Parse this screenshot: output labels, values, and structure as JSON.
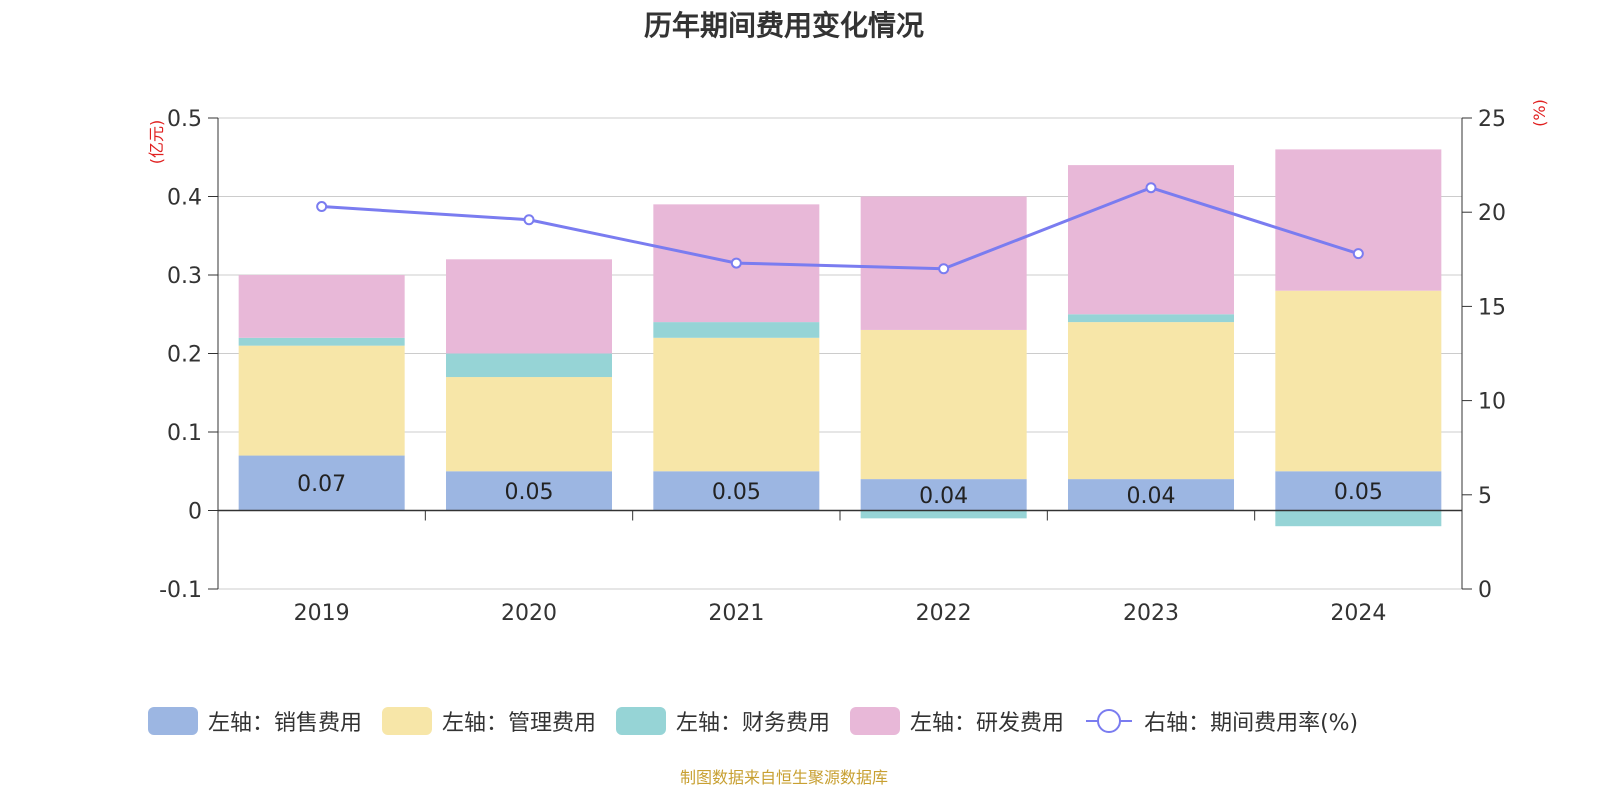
{
  "title": "历年期间费用变化情况",
  "source_note": "制图数据来自恒生聚源数据库",
  "colors": {
    "sales": "#9cb6e2",
    "admin": "#f7e6a8",
    "finance": "#96d4d6",
    "rd": "#e8b8d8",
    "rate_line": "#7a7cf0"
  },
  "legend": [
    {
      "label": "左轴：销售费用",
      "key": "sales",
      "kind": "bar"
    },
    {
      "label": "左轴：管理费用",
      "key": "admin",
      "kind": "bar"
    },
    {
      "label": "左轴：财务费用",
      "key": "finance",
      "kind": "bar"
    },
    {
      "label": "左轴：研发费用",
      "key": "rd",
      "kind": "bar"
    },
    {
      "label": "右轴：期间费用率(%)",
      "key": "rate_line",
      "kind": "line"
    }
  ],
  "chart_data": {
    "type": "bar",
    "stacked": true,
    "title": "历年期间费用变化情况",
    "categories": [
      "2019",
      "2020",
      "2021",
      "2022",
      "2023",
      "2024"
    ],
    "series": [
      {
        "name": "左轴：销售费用",
        "key": "sales",
        "axis": "left",
        "values": [
          0.07,
          0.05,
          0.05,
          0.04,
          0.04,
          0.05
        ],
        "labels": [
          "0.07",
          "0.05",
          "0.05",
          "0.04",
          "0.04",
          "0.05"
        ]
      },
      {
        "name": "左轴：管理费用",
        "key": "admin",
        "axis": "left",
        "values": [
          0.14,
          0.12,
          0.17,
          0.19,
          0.2,
          0.23
        ]
      },
      {
        "name": "左轴：财务费用",
        "key": "finance",
        "axis": "left",
        "values": [
          0.01,
          0.03,
          0.02,
          -0.01,
          0.01,
          -0.02
        ]
      },
      {
        "name": "左轴：研发费用",
        "key": "rd",
        "axis": "left",
        "values": [
          0.08,
          0.12,
          0.15,
          0.17,
          0.19,
          0.18
        ]
      },
      {
        "name": "右轴：期间费用率(%)",
        "key": "rate_line",
        "axis": "right",
        "type": "line",
        "values": [
          20.3,
          19.6,
          17.3,
          17.0,
          21.3,
          17.8
        ]
      }
    ],
    "left_axis": {
      "unit": "(亿元)",
      "ylim": [
        -0.1,
        0.5
      ],
      "ticks": [
        "-0.1",
        "0",
        "0.1",
        "0.2",
        "0.3",
        "0.4",
        "0.5"
      ]
    },
    "right_axis": {
      "unit": "(%)",
      "ylim": [
        0,
        25
      ],
      "ticks": [
        "0",
        "5",
        "10",
        "15",
        "20",
        "25"
      ]
    },
    "grid": true,
    "legend_position": "bottom"
  }
}
